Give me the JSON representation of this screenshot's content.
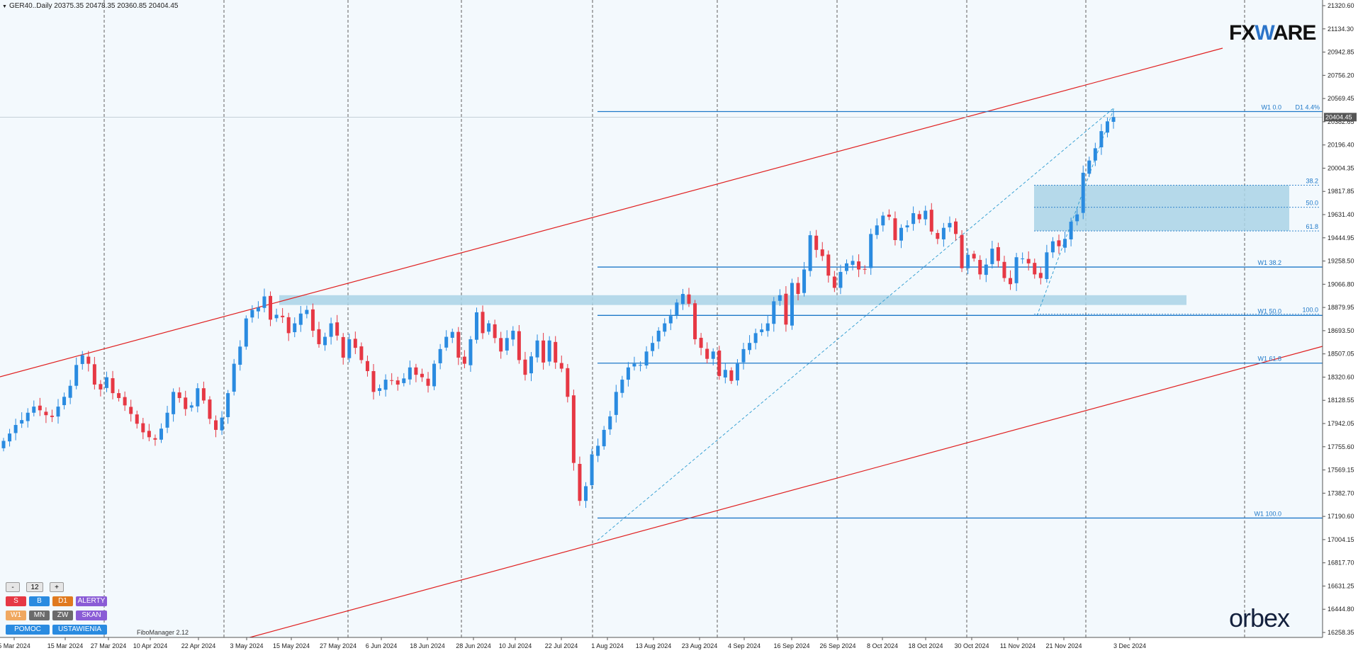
{
  "header": {
    "symbol_info": "GER40..Daily  20375.35 20478.35 20360.85 20404.45"
  },
  "logos": {
    "fxware_left": "FX",
    "fxware_w": "W",
    "fxware_right": "ARE",
    "orbex": "orbex"
  },
  "panel": {
    "minus": "-",
    "value": "12",
    "plus": "+",
    "row1": [
      "S",
      "B",
      "D1",
      "ALERTY"
    ],
    "row2": [
      "W1",
      "MN",
      "ZW",
      "SKAN"
    ],
    "row3": [
      "POMOC",
      "USTAWIENIA"
    ]
  },
  "fibomanager_label": "FiboManager 2.12",
  "colors": {
    "up": "#2a8be0",
    "down": "#e63844",
    "fib_line": "#1e78c8",
    "channel": "#e02020",
    "zone": "#a9d4e6",
    "grid": "#606060"
  },
  "chart_data": {
    "type": "candlestick",
    "title": "GER40..Daily",
    "last_price": "20404.45",
    "current_bar": {
      "open": 20375.35,
      "high": 20478.35,
      "low": 20360.85,
      "close": 20404.45
    },
    "ylim": [
      16258.9,
      21320.6
    ],
    "y_ticks": [
      "21320.60",
      "21134.30",
      "20942.85",
      "20756.20",
      "20569.45",
      "20382.65",
      "20196.40",
      "20004.35",
      "19817.85",
      "19631.40",
      "19444.95",
      "19258.50",
      "19066.80",
      "18879.95",
      "18693.50",
      "18507.05",
      "18320.60",
      "18128.55",
      "17942.05",
      "17755.60",
      "17569.15",
      "17382.70",
      "17190.60",
      "17004.15",
      "16817.70",
      "16631.25",
      "16444.80",
      "16258.35"
    ],
    "x_labels": [
      "5 Mar 2024",
      "15 Mar 2024",
      "27 Mar 2024",
      "10 Apr 2024",
      "22 Apr 2024",
      "3 May 2024",
      "15 May 2024",
      "27 May 2024",
      "6 Jun 2024",
      "18 Jun 2024",
      "28 Jun 2024",
      "10 Jul 2024",
      "22 Jul 2024",
      "1 Aug 2024",
      "13 Aug 2024",
      "23 Aug 2024",
      "4 Sep 2024",
      "16 Sep 2024",
      "26 Sep 2024",
      "8 Oct 2024",
      "18 Oct 2024",
      "30 Oct 2024",
      "11 Nov 2024",
      "21 Nov 2024",
      "3 Dec 2024"
    ],
    "grid": "vertical dashed",
    "candles_close": [
      17760,
      17820,
      17890,
      17930,
      17990,
      18040,
      18010,
      17970,
      17955,
      18040,
      18120,
      18210,
      18380,
      18460,
      18390,
      18220,
      18180,
      18280,
      18150,
      18110,
      18050,
      17980,
      17900,
      17830,
      17790,
      17770,
      17860,
      17990,
      18160,
      18110,
      18020,
      18050,
      18190,
      18090,
      17940,
      17850,
      17950,
      18150,
      18390,
      18530,
      18760,
      18830,
      18850,
      18940,
      18750,
      18790,
      18770,
      18640,
      18720,
      18800,
      18830,
      18660,
      18550,
      18610,
      18720,
      18620,
      18440,
      18590,
      18520,
      18420,
      18330,
      18160,
      18190,
      18260,
      18250,
      18220,
      18270,
      18360,
      18300,
      18280,
      18210,
      18390,
      18510,
      18610,
      18650,
      18440,
      18390,
      18590,
      18810,
      18640,
      18720,
      18600,
      18490,
      18600,
      18660,
      18420,
      18300,
      18450,
      18580,
      18400,
      18580,
      18400,
      18350,
      18120,
      17580,
      17270,
      17390,
      17650,
      17720,
      17850,
      17960,
      18160,
      18260,
      18360,
      18390,
      18380,
      18490,
      18560,
      18660,
      18720,
      18780,
      18890,
      18960,
      18880,
      18590,
      18520,
      18430,
      18490,
      18290,
      18340,
      18250,
      18390,
      18510,
      18560,
      18640,
      18670,
      18720,
      18900,
      18950,
      18710,
      19050,
      18960,
      19160,
      19440,
      19320,
      19270,
      19110,
      19010,
      19140,
      19210,
      19230,
      19160,
      19160,
      19450,
      19520,
      19600,
      19590,
      19400,
      19500,
      19520,
      19620,
      19570,
      19640,
      19470,
      19410,
      19500,
      19540,
      19450,
      19170,
      19280,
      19250,
      19120,
      19200,
      19330,
      19230,
      19090,
      19040,
      19260,
      19250,
      19210,
      19120,
      19090,
      19300,
      19390,
      19350,
      19410,
      19550,
      19610,
      19950,
      20050,
      20150,
      20290,
      20370,
      20404.45
    ],
    "fibonacci_levels": [
      {
        "label": "W1 0.0",
        "value": 20450
      },
      {
        "label": "D1 4.4%",
        "value": 20450
      },
      {
        "label": "W1 38.2",
        "value": 19180
      },
      {
        "label": "W1 50.0",
        "value": 18785
      },
      {
        "label": "W1 61.8",
        "value": 18395
      },
      {
        "label": "W1 100.0",
        "value": 17130
      }
    ],
    "retracement_box": {
      "top": 19848,
      "bottom": 19475,
      "levels": [
        {
          "label": "38.2",
          "value": 19848
        },
        {
          "label": "50.0",
          "value": 19668
        },
        {
          "label": "61.8",
          "value": 19475
        },
        {
          "label": "100.0",
          "value": 18795
        }
      ]
    },
    "support_zone": {
      "top": 18950,
      "bottom": 18870
    },
    "channel": {
      "upper": [
        [
          "5 Mar 2024",
          18540
        ],
        [
          "3 Dec 2024",
          20900
        ]
      ],
      "lower": [
        [
          "15 May 2024",
          15700
        ],
        [
          "3 Dec 2024",
          18560
        ]
      ]
    }
  }
}
